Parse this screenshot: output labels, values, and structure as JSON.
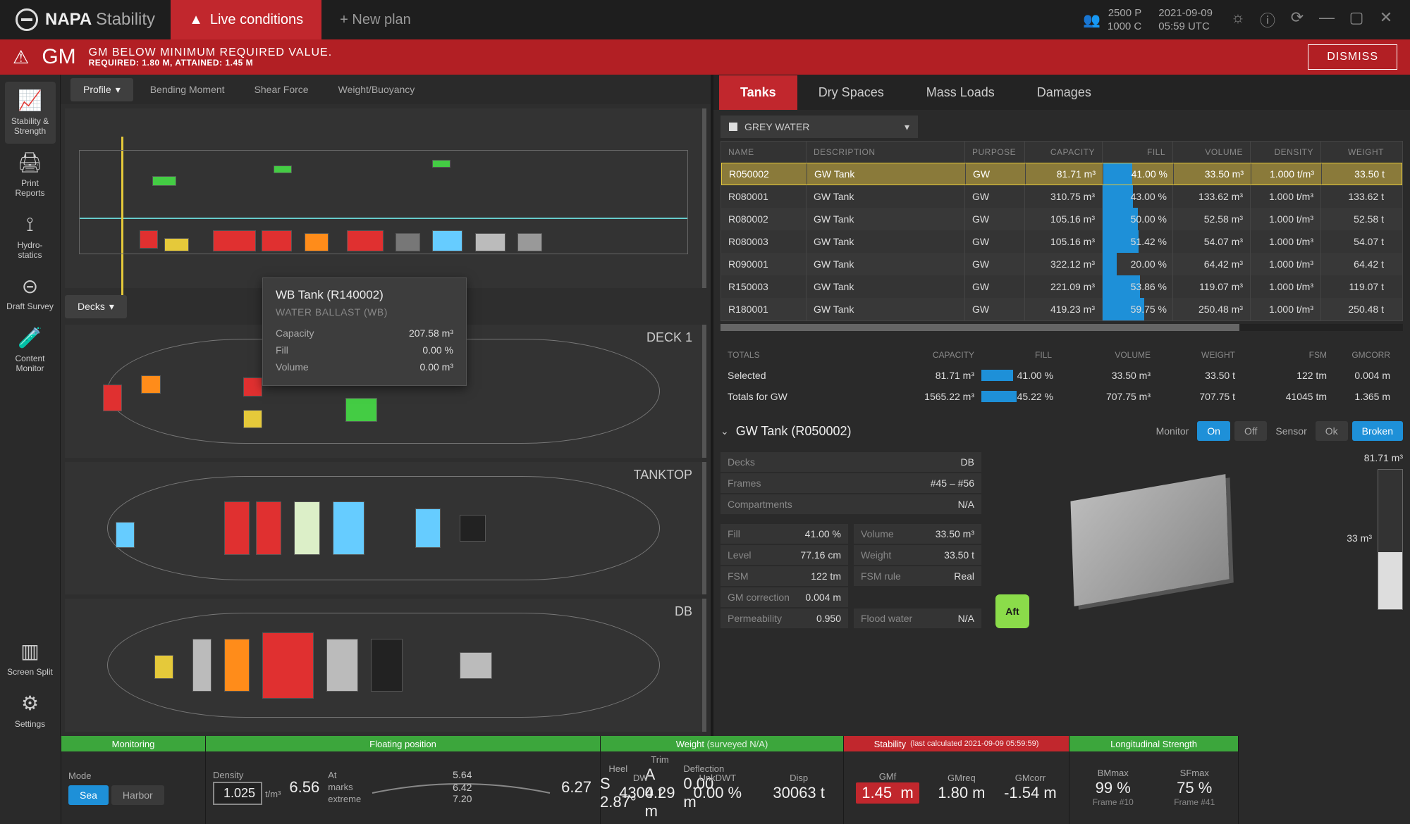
{
  "brand": {
    "name": "NAPA",
    "sub": "Stability"
  },
  "topbar": {
    "live_tab": "Live conditions",
    "new_plan": "+ New plan",
    "users": {
      "p": "2500 P",
      "c": "1000 C"
    },
    "time": {
      "date": "2021-09-09",
      "utc": "05:59 UTC"
    }
  },
  "alert": {
    "code": "GM",
    "main": "GM BELOW MINIMUM REQUIRED VALUE.",
    "sub": "REQUIRED: 1.80 M, ATTAINED: 1.45 M",
    "dismiss": "DISMISS"
  },
  "sidebar": [
    {
      "id": "stability",
      "label": "Stability & Strength",
      "icon": "curve"
    },
    {
      "id": "print",
      "label": "Print Reports",
      "icon": "printer"
    },
    {
      "id": "hydro",
      "label": "Hydro-\nstatics",
      "icon": "anchor"
    },
    {
      "id": "draft",
      "label": "Draft Survey",
      "icon": "survey"
    },
    {
      "id": "content",
      "label": "Content Monitor",
      "icon": "beaker"
    }
  ],
  "sidebar_bottom": [
    {
      "id": "screensplit",
      "label": "Screen Split",
      "icon": "split"
    },
    {
      "id": "settings",
      "label": "Settings",
      "icon": "gear"
    }
  ],
  "center": {
    "tabs": [
      "Profile",
      "Bending Moment",
      "Shear Force",
      "Weight/Buoyancy"
    ],
    "active_tab": "Profile",
    "deck_tab": "Decks",
    "deck_labels": [
      "DECK 1",
      "TANKTOP",
      "DB"
    ],
    "tooltip": {
      "title": "WB Tank (R140002)",
      "sub": "WATER BALLAST (WB)",
      "rows": [
        {
          "k": "Capacity",
          "v": "207.58 m³"
        },
        {
          "k": "Fill",
          "v": "0.00 %"
        },
        {
          "k": "Volume",
          "v": "0.00 m³"
        }
      ]
    }
  },
  "right": {
    "tabs": [
      "Tanks",
      "Dry Spaces",
      "Mass Loads",
      "Damages"
    ],
    "active_tab": "Tanks",
    "group": "GREY WATER",
    "columns": [
      "NAME",
      "DESCRIPTION",
      "PURPOSE",
      "CAPACITY",
      "FILL",
      "VOLUME",
      "DENSITY",
      "WEIGHT"
    ],
    "rows": [
      {
        "name": "R050002",
        "desc": "GW Tank",
        "purpose": "GW",
        "capacity": "81.71 m³",
        "fill_pct": 41.0,
        "fill": "41.00 %",
        "volume": "33.50 m³",
        "density": "1.000 t/m³",
        "weight": "33.50 t",
        "selected": true
      },
      {
        "name": "R080001",
        "desc": "GW Tank",
        "purpose": "GW",
        "capacity": "310.75 m³",
        "fill_pct": 43.0,
        "fill": "43.00 %",
        "volume": "133.62 m³",
        "density": "1.000 t/m³",
        "weight": "133.62 t"
      },
      {
        "name": "R080002",
        "desc": "GW Tank",
        "purpose": "GW",
        "capacity": "105.16 m³",
        "fill_pct": 50.0,
        "fill": "50.00 %",
        "volume": "52.58 m³",
        "density": "1.000 t/m³",
        "weight": "52.58 t"
      },
      {
        "name": "R080003",
        "desc": "GW Tank",
        "purpose": "GW",
        "capacity": "105.16 m³",
        "fill_pct": 51.42,
        "fill": "51.42 %",
        "volume": "54.07 m³",
        "density": "1.000 t/m³",
        "weight": "54.07 t"
      },
      {
        "name": "R090001",
        "desc": "GW Tank",
        "purpose": "GW",
        "capacity": "322.12 m³",
        "fill_pct": 20.0,
        "fill": "20.00 %",
        "volume": "64.42 m³",
        "density": "1.000 t/m³",
        "weight": "64.42 t"
      },
      {
        "name": "R150003",
        "desc": "GW Tank",
        "purpose": "GW",
        "capacity": "221.09 m³",
        "fill_pct": 53.86,
        "fill": "53.86 %",
        "volume": "119.07 m³",
        "density": "1.000 t/m³",
        "weight": "119.07 t"
      },
      {
        "name": "R180001",
        "desc": "GW Tank",
        "purpose": "GW",
        "capacity": "419.23 m³",
        "fill_pct": 59.75,
        "fill": "59.75 %",
        "volume": "250.48 m³",
        "density": "1.000 t/m³",
        "weight": "250.48 t"
      }
    ],
    "totals_columns": [
      "TOTALS",
      "CAPACITY",
      "FILL",
      "VOLUME",
      "WEIGHT",
      "FSM",
      "GMCORR"
    ],
    "totals": [
      {
        "label": "Selected",
        "capacity": "81.71 m³",
        "fill_pct": 41.0,
        "fill": "41.00 %",
        "volume": "33.50 m³",
        "weight": "33.50 t",
        "fsm": "122 tm",
        "gmcorr": "0.004 m"
      },
      {
        "label": "Totals for GW",
        "capacity": "1565.22 m³",
        "fill_pct": 45.22,
        "fill": "45.22 %",
        "volume": "707.75 m³",
        "weight": "707.75 t",
        "fsm": "41045 tm",
        "gmcorr": "1.365 m"
      }
    ],
    "detail": {
      "title": "GW Tank (R050002)",
      "monitor_label": "Monitor",
      "monitor_on": "On",
      "monitor_off": "Off",
      "sensor_label": "Sensor",
      "sensor_ok": "Ok",
      "sensor_broken": "Broken",
      "top_props": [
        {
          "k": "Decks",
          "v": "DB"
        },
        {
          "k": "Frames",
          "v": "#45 – #56"
        },
        {
          "k": "Compartments",
          "v": "N/A"
        }
      ],
      "grid_props": [
        [
          {
            "k": "Fill",
            "v": "41.00 %"
          },
          {
            "k": "Volume",
            "v": "33.50 m³"
          }
        ],
        [
          {
            "k": "Level",
            "v": "77.16 cm"
          },
          {
            "k": "Weight",
            "v": "33.50 t"
          }
        ],
        [
          {
            "k": "FSM",
            "v": "122 tm"
          },
          {
            "k": "FSM rule",
            "v": "Real"
          }
        ],
        [
          {
            "k": "GM correction",
            "v": "0.004 m"
          },
          {
            "k": "",
            "v": ""
          }
        ],
        [
          {
            "k": "Permeability",
            "v": "0.950"
          },
          {
            "k": "Flood water",
            "v": "N/A"
          }
        ]
      ],
      "gauge": {
        "max": "81.71 m³",
        "mid": "33 m³",
        "fill_pct": 41
      },
      "compass": "Aft"
    }
  },
  "status": {
    "monitoring": {
      "title": "Monitoring",
      "mode_label": "Mode",
      "sea": "Sea",
      "harbor": "Harbor"
    },
    "floating": {
      "title": "Floating position",
      "density_label": "Density",
      "density": "1.025",
      "density_unit": "t/m³",
      "num_l": "6.56",
      "marks_label": "At marks extreme",
      "marks": [
        "5.64",
        "6.42",
        "7.20"
      ],
      "num_r": "6.27",
      "heel_label": "Heel",
      "heel": "S 2.87°",
      "trim_label": "Trim",
      "trim": "A 0.29 m",
      "defl_label": "Deflection",
      "defl": "0.00 m"
    },
    "weight": {
      "title": "Weight",
      "title_sub": "(surveyed N/A)",
      "dw_label": "DW",
      "dw": "4304 t",
      "unk_label": "UnkDWT",
      "unk": "0.00 %",
      "disp_label": "Disp",
      "disp": "30063 t"
    },
    "stability": {
      "title": "Stability",
      "title_sub": "(last calculated 2021-09-09 05:59:59)",
      "gmf_label": "GMf",
      "gmf": "1.45",
      "gmf_unit": "m",
      "gmreq_label": "GMreq",
      "gmreq": "1.80 m",
      "gmcorr_label": "GMcorr",
      "gmcorr": "-1.54 m"
    },
    "long": {
      "title": "Longitudinal Strength",
      "bm_label": "BMmax",
      "bm": "99 %",
      "bm_sub": "Frame #10",
      "sf_label": "SFmax",
      "sf": "75 %",
      "sf_sub": "Frame #41"
    }
  },
  "colors": {
    "accent": "#c1272d",
    "blue": "#1e90d8",
    "green": "#3ca63c",
    "yellow": "#e5c93a",
    "cyan": "#6cc"
  }
}
